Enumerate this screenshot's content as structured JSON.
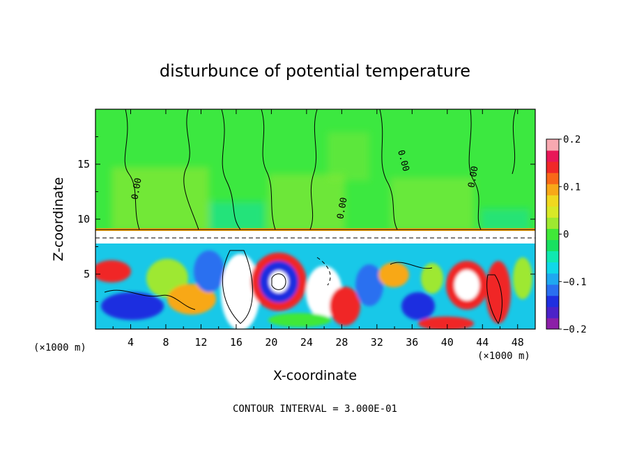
{
  "chart_data": {
    "type": "heatmap",
    "title": "disturbunce of potential temperature",
    "xlabel": "X-coordinate",
    "ylabel": "Z-coordinate",
    "x_unit_label": "(×1000 m)",
    "x_unit_label_right": "(×1000 m)",
    "xlim": [
      0,
      50
    ],
    "ylim": [
      0,
      20
    ],
    "x_ticks": [
      "4",
      "8",
      "12",
      "16",
      "20",
      "24",
      "28",
      "32",
      "36",
      "40",
      "44",
      "48"
    ],
    "y_ticks": [
      "5",
      "10",
      "15"
    ],
    "x_tick_values": [
      4,
      8,
      12,
      16,
      20,
      24,
      28,
      32,
      36,
      40,
      44,
      48
    ],
    "y_tick_values": [
      5,
      10,
      15
    ],
    "colorbar": {
      "min": -0.2,
      "max": 0.2,
      "tick_labels": [
        "0.2",
        "0.1",
        "0",
        "−0.1",
        "−0.2"
      ],
      "tick_values": [
        0.2,
        0.1,
        0,
        -0.1,
        -0.2
      ],
      "colors": [
        "#8c1fa8",
        "#4b22c8",
        "#1f2fe0",
        "#2a6ff0",
        "#1fa8f0",
        "#10d8e8",
        "#10e8b0",
        "#18e060",
        "#40e838",
        "#9ee830",
        "#d8e828",
        "#f0d820",
        "#f8a818",
        "#f86818",
        "#f02828",
        "#e81858",
        "#f8a8b0"
      ]
    },
    "contour_labels": [
      "0.00",
      "0.00",
      "0.00",
      "0.00"
    ],
    "annotation": "CONTOUR INTERVAL = 3.000E-01",
    "grid": false
  }
}
